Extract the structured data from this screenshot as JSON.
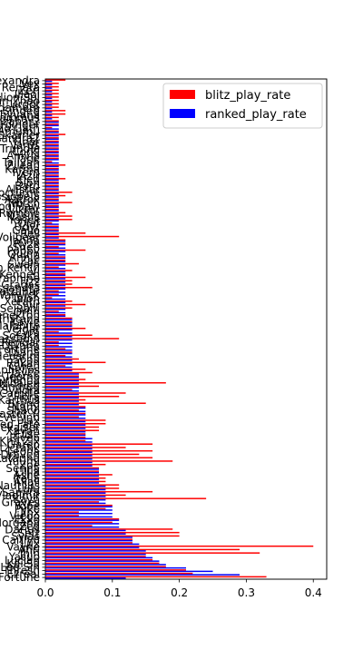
{
  "chart_data": {
    "type": "bar",
    "orientation": "horizontal",
    "categories": [
      "Fortune",
      "Ezreal",
      "Thresh",
      "Lee Sin",
      "Kai'Sa",
      "Lucian",
      "Yasuo",
      "Jhin",
      "Ahri",
      "Vayne",
      "Lux",
      "Caitlyn",
      "Sylas",
      "Sett",
      "Darius",
      "Zed",
      "Morgana",
      "Ekko",
      "Viego",
      "Jinx",
      "Pyke",
      "Yone",
      "Graves",
      "Kayn",
      "Vladimir",
      "Samira",
      "Lulu",
      "Nautilus",
      "Akali",
      "Irelia",
      "Ashe",
      "Lillia",
      "Senna",
      "Zoe",
      "Yuumi",
      "Katarina",
      "Draven",
      "Leona",
      "Blitzcrank",
      "Garen",
      "Kha'Zix",
      "Riven",
      "Elise",
      "Xayah",
      "Mordekaiser",
      "Twisted Fate",
      "Jax",
      "Evelynn",
      "Master Yi",
      "Shaco",
      "Nami",
      "Brand",
      "Karthus",
      "Fiora",
      "Camille",
      "Syndra",
      "Kindred",
      "Nidalee",
      "Orianna",
      "Teemo",
      "Jayce",
      "Aphelios",
      "Gwen",
      "Rakan",
      "Sona",
      "Hecarim",
      "Diana",
      "Miss Fortune",
      "Qiyana",
      "Rengar",
      "Kassadin",
      "Soraka",
      "Zyra",
      "Veigar",
      "Malphite",
      "Kayle",
      "Tristana",
      "Renekton",
      "Ornn",
      "Sejuani",
      "Sivir",
      "Xerath",
      "Talon",
      "Warwick",
      "Malzahar",
      "Lissandra",
      "Gragas",
      "Fizz",
      "Seraphine",
      "Kennen",
      "Vi",
      "Tahm Kench",
      "Swain",
      "Zac",
      "Annie",
      "Quinn",
      "Poppy",
      "Shen",
      "Ryze",
      "Janna",
      "Volibear",
      "Rell",
      "Galio",
      "Udyr",
      "Olaf",
      "Yorick",
      "Nasus",
      "Rumble",
      "Viktor",
      "Kog'Maw",
      "Twitch",
      "Aatrox",
      "Cassiopeia",
      "Nocturne",
      "Alistar",
      "Bard",
      "Sion",
      "Kled",
      "Azir",
      "Ivern",
      "Karma",
      "Zilean",
      "Taliyah",
      "Taric",
      "Anivia",
      "Corki",
      "Trundle",
      "Varus",
      "Gnar",
      "Lissandra2",
      "Skarner",
      "Amumu",
      "Cho'Gath",
      "Heimerdinger",
      "Malzahar2",
      "Rammus",
      "Shyvana",
      "Singed",
      "Tryndamere",
      "Urgot",
      "Xin Zhao",
      "Aurelion Sol",
      "Illaoi",
      "Zeri",
      "Renata",
      "Vex",
      "Alexandra"
    ],
    "series": [
      {
        "name": "blitz_play_rate",
        "color": "#ff0000",
        "values": [
          0.33,
          0.22,
          0.21,
          0.18,
          0.17,
          0.16,
          0.15,
          0.32,
          0.29,
          0.4,
          0.13,
          0.13,
          0.2,
          0.2,
          0.19,
          0.07,
          0.1,
          0.11,
          0.05,
          0.05,
          0.09,
          0.1,
          0.08,
          0.24,
          0.12,
          0.16,
          0.11,
          0.11,
          0.09,
          0.09,
          0.1,
          0.08,
          0.08,
          0.09,
          0.19,
          0.16,
          0.14,
          0.16,
          0.12,
          0.16,
          0.06,
          0.06,
          0.06,
          0.08,
          0.08,
          0.09,
          0.09,
          0.05,
          0.06,
          0.05,
          0.06,
          0.15,
          0.06,
          0.11,
          0.12,
          0.04,
          0.08,
          0.18,
          0.06,
          0.05,
          0.07,
          0.06,
          0.03,
          0.09,
          0.05,
          0.03,
          0.04,
          0.03,
          0.02,
          0.02,
          0.11,
          0.07,
          0.02,
          0.06,
          0.04,
          0.04,
          0.04,
          0.03,
          0.02,
          0.04,
          0.06,
          0.04,
          0.01,
          0.02,
          0.02,
          0.07,
          0.04,
          0.04,
          0.06,
          0.03,
          0.04,
          0.02,
          0.05,
          0.03,
          0.03,
          0.02,
          0.06,
          0.02,
          0.03,
          0.03,
          0.11,
          0.06,
          0.02,
          0.02,
          0.01,
          0.04,
          0.04,
          0.03,
          0.02,
          0.02,
          0.04,
          0.02,
          0.03,
          0.04,
          0.02,
          0.02,
          0.02,
          0.03,
          0.02,
          0.02,
          0.02,
          0.03,
          0.01,
          0.02,
          0.02,
          0.02,
          0.02,
          0.02,
          0.02,
          0.02,
          0.03,
          0.02,
          0.01,
          0.02,
          0.02,
          0.02,
          0.03,
          0.03,
          0.02,
          0.02,
          0.02,
          0.02,
          0.02,
          0.02,
          0.02,
          0.02,
          0.03
        ]
      },
      {
        "name": "ranked_play_rate",
        "color": "#0000ff",
        "values": [
          0.12,
          0.29,
          0.25,
          0.21,
          0.18,
          0.17,
          0.16,
          0.15,
          0.15,
          0.14,
          0.14,
          0.13,
          0.13,
          0.12,
          0.12,
          0.11,
          0.11,
          0.11,
          0.1,
          0.1,
          0.1,
          0.1,
          0.09,
          0.09,
          0.09,
          0.09,
          0.09,
          0.09,
          0.08,
          0.08,
          0.08,
          0.08,
          0.08,
          0.07,
          0.07,
          0.07,
          0.07,
          0.07,
          0.07,
          0.07,
          0.07,
          0.07,
          0.06,
          0.06,
          0.06,
          0.06,
          0.06,
          0.06,
          0.06,
          0.06,
          0.06,
          0.05,
          0.05,
          0.05,
          0.05,
          0.05,
          0.05,
          0.05,
          0.05,
          0.05,
          0.05,
          0.04,
          0.04,
          0.04,
          0.04,
          0.04,
          0.04,
          0.04,
          0.04,
          0.04,
          0.04,
          0.04,
          0.04,
          0.04,
          0.04,
          0.04,
          0.04,
          0.03,
          0.03,
          0.03,
          0.03,
          0.03,
          0.03,
          0.03,
          0.03,
          0.03,
          0.03,
          0.03,
          0.03,
          0.03,
          0.03,
          0.03,
          0.03,
          0.03,
          0.03,
          0.03,
          0.03,
          0.03,
          0.03,
          0.03,
          0.02,
          0.02,
          0.02,
          0.02,
          0.02,
          0.02,
          0.02,
          0.02,
          0.02,
          0.02,
          0.02,
          0.02,
          0.02,
          0.02,
          0.02,
          0.02,
          0.02,
          0.02,
          0.02,
          0.02,
          0.02,
          0.02,
          0.02,
          0.02,
          0.02,
          0.02,
          0.02,
          0.02,
          0.02,
          0.02,
          0.02,
          0.02,
          0.02,
          0.02,
          0.02,
          0.01,
          0.01,
          0.01,
          0.01,
          0.01,
          0.01,
          0.01,
          0.01,
          0.01,
          0.01,
          0.01,
          0.01
        ]
      }
    ],
    "xlim": [
      0,
      0.42
    ],
    "xticks": [
      0.0,
      0.1,
      0.2,
      0.3,
      0.4
    ],
    "xtick_labels": [
      "0.0",
      "0.1",
      "0.2",
      "0.3",
      "0.4"
    ],
    "legend_position": "upper right",
    "grid": false
  }
}
